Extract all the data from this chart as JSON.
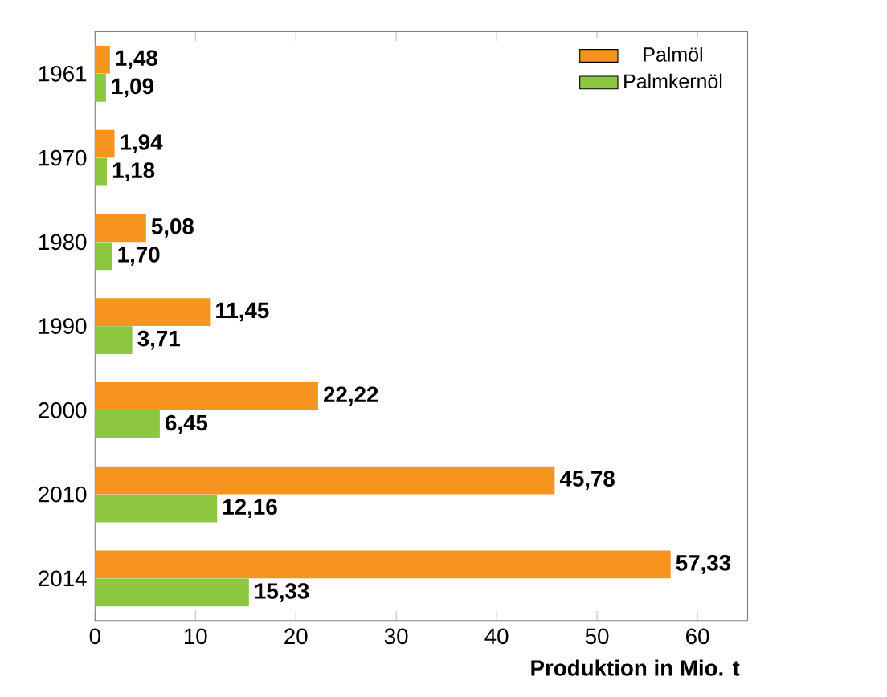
{
  "chart_data": {
    "type": "bar",
    "orientation": "horizontal",
    "categories": [
      "1961",
      "1970",
      "1980",
      "1990",
      "2000",
      "2010",
      "2014"
    ],
    "series": [
      {
        "name": "Palmöl",
        "color": "#f7941d",
        "values": [
          1.48,
          1.94,
          5.08,
          11.45,
          22.22,
          45.78,
          57.33
        ],
        "value_labels": [
          "1,48",
          "1,94",
          "5,08",
          "11,45",
          "22,22",
          "45,78",
          "57,33"
        ]
      },
      {
        "name": "Palmkernöl",
        "color": "#8dc63f",
        "values": [
          1.09,
          1.18,
          1.7,
          3.71,
          6.45,
          12.16,
          15.33
        ],
        "value_labels": [
          "1,09",
          "1,18",
          "1,70",
          "3,71",
          "6,45",
          "12,16",
          "15,33"
        ]
      }
    ],
    "xlabel": "Produktion in Mio. t",
    "xlim": [
      0,
      65
    ],
    "xticks": [
      0,
      10,
      20,
      30,
      40,
      50,
      60
    ],
    "legend": "top right",
    "grid": false
  }
}
